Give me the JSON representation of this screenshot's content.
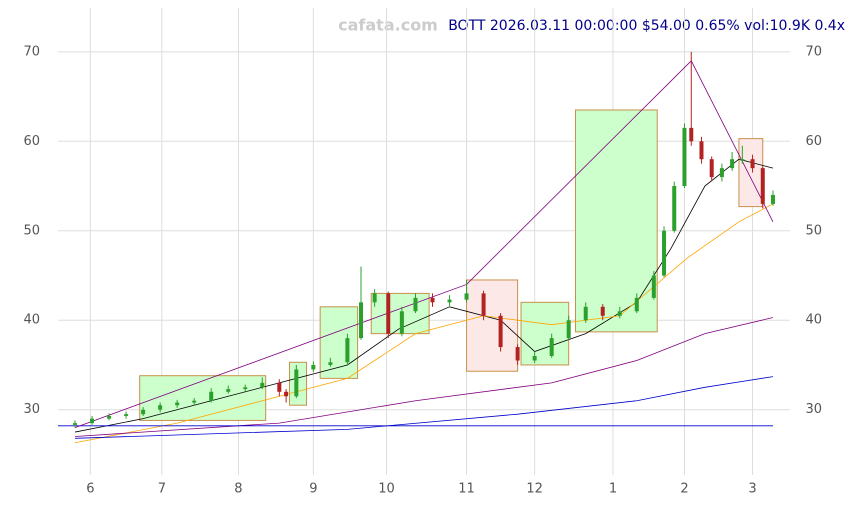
{
  "chart_data": {
    "type": "candlestick",
    "title": "BOTT 2026.03.11 00:00:00 $54.00 0.65% vol:10.9K 0.4x",
    "watermark": "cafata.com",
    "xlim": [
      -5,
      210
    ],
    "ylim": [
      22.7,
      74.9
    ],
    "xticks": [
      {
        "value": 4.5,
        "label": "6"
      },
      {
        "value": 25.5,
        "label": "7"
      },
      {
        "value": 48,
        "label": "8"
      },
      {
        "value": 70,
        "label": "9"
      },
      {
        "value": 91.5,
        "label": "10"
      },
      {
        "value": 115,
        "label": "11"
      },
      {
        "value": 135,
        "label": "12"
      },
      {
        "value": 158,
        "label": "1"
      },
      {
        "value": 179,
        "label": "2"
      },
      {
        "value": 199,
        "label": "3"
      }
    ],
    "yticks": [
      30,
      40,
      50,
      60,
      70
    ],
    "grid": true,
    "up_color": "#2ca02c",
    "down_color": "#b22222",
    "x": [
      0,
      5,
      10,
      15,
      20,
      25,
      30,
      35,
      40,
      45,
      50,
      55,
      60,
      62,
      65,
      70,
      75,
      80,
      84,
      88,
      92,
      96,
      100,
      105,
      110,
      115,
      120,
      125,
      130,
      135,
      140,
      145,
      150,
      155,
      160,
      165,
      170,
      173,
      176,
      179,
      181,
      184,
      187,
      190,
      193,
      196,
      199,
      202,
      205
    ],
    "open": [
      28.3,
      28.5,
      29,
      29.3,
      29.5,
      30,
      30.5,
      30.8,
      31,
      32,
      32.3,
      32.5,
      33,
      32,
      31.5,
      34.5,
      35,
      35.3,
      38,
      42,
      43,
      38.5,
      41,
      42.5,
      42,
      42.3,
      43,
      40.5,
      37,
      35.5,
      36,
      38,
      40,
      41.5,
      40.5,
      41,
      42.5,
      45,
      50,
      55,
      61.5,
      60,
      58,
      56,
      57,
      58,
      58,
      57,
      53
    ],
    "high": [
      28.8,
      29.3,
      29.6,
      29.8,
      30.3,
      30.8,
      31.1,
      31.3,
      32.4,
      32.7,
      32.8,
      33.6,
      33.4,
      32.3,
      35,
      35.4,
      35.8,
      38.5,
      46,
      43.5,
      43.2,
      41.5,
      43,
      43,
      42.8,
      44.5,
      43.3,
      40.8,
      37.3,
      36.5,
      38.5,
      40.5,
      42,
      41.8,
      41.5,
      43,
      45.5,
      50.5,
      55.5,
      62,
      70,
      60.5,
      58.3,
      57.5,
      58.8,
      59.5,
      58.5,
      57.2,
      54.5
    ],
    "low": [
      28.0,
      28.3,
      28.8,
      29.0,
      29.3,
      29.7,
      30.2,
      30.5,
      30.8,
      31.8,
      32,
      32.3,
      31.5,
      30.8,
      31.3,
      34.2,
      34.8,
      35,
      37.8,
      41.5,
      38,
      38.2,
      40.8,
      41.5,
      41.6,
      42,
      40,
      36.5,
      35,
      35.2,
      35.8,
      37.8,
      39.7,
      40,
      40.2,
      40.8,
      42.3,
      44.8,
      49.8,
      54.8,
      59.5,
      57.5,
      55.5,
      55.5,
      56.7,
      57.5,
      56.5,
      52.5,
      52.8
    ],
    "close": [
      28.5,
      29,
      29.3,
      29.5,
      30,
      30.5,
      30.8,
      31,
      32,
      32.3,
      32.5,
      33,
      32,
      31.5,
      34.5,
      35,
      35.3,
      38,
      42,
      43,
      38.5,
      41,
      42.5,
      42,
      42.3,
      43,
      40.5,
      37,
      35.5,
      36,
      38,
      40,
      41.5,
      40.5,
      41,
      42.5,
      45,
      50,
      55,
      61.5,
      60,
      58,
      56,
      57,
      58,
      58,
      57,
      53,
      54
    ],
    "boxes": [
      {
        "x": [
          19,
          56
        ],
        "y": [
          28.8,
          33.8
        ],
        "color": "#ccffcc"
      },
      {
        "x": [
          63,
          68
        ],
        "y": [
          30.5,
          35.3
        ],
        "color": "#ccffcc"
      },
      {
        "x": [
          72,
          83
        ],
        "y": [
          33.5,
          41.5
        ],
        "color": "#ccffcc"
      },
      {
        "x": [
          87,
          104
        ],
        "y": [
          38.5,
          43
        ],
        "color": "#ccffcc"
      },
      {
        "x": [
          115,
          130
        ],
        "y": [
          34.3,
          44.5
        ],
        "color": "#fde8e8"
      },
      {
        "x": [
          131,
          145
        ],
        "y": [
          35,
          42
        ],
        "color": "#ccffcc"
      },
      {
        "x": [
          147,
          171
        ],
        "y": [
          38.7,
          63.5
        ],
        "color": "#ccffcc"
      },
      {
        "x": [
          195,
          202
        ],
        "y": [
          52.7,
          60.3
        ],
        "color": "#fde8e8"
      }
    ],
    "lines": [
      {
        "color": "#000000",
        "x": [
          0,
          20,
          40,
          60,
          80,
          95,
          110,
          125,
          135,
          150,
          165,
          175,
          185,
          195,
          205
        ],
        "values": [
          27.5,
          29,
          31,
          33,
          35,
          39,
          41.5,
          40,
          36.5,
          38.5,
          42,
          48,
          55,
          58,
          57
        ]
      },
      {
        "color": "#ffa500",
        "x": [
          0,
          30,
          60,
          80,
          100,
          120,
          140,
          160,
          180,
          195,
          205
        ],
        "values": [
          26.3,
          28.5,
          31.5,
          33.5,
          38.5,
          40.5,
          39.5,
          40.5,
          47,
          51,
          53
        ]
      },
      {
        "color": "#800080",
        "x": [
          0,
          60,
          100,
          140,
          165,
          185,
          205
        ],
        "values": [
          27,
          28.5,
          31,
          33,
          35.5,
          38.5,
          40.3
        ]
      },
      {
        "color": "#0000cd",
        "x": [
          0,
          80,
          130,
          165,
          185,
          205
        ],
        "values": [
          26.8,
          27.8,
          29.5,
          31,
          32.5,
          33.7
        ]
      },
      {
        "color": "#0000cd",
        "x": [
          -5,
          205
        ],
        "values": [
          28.2,
          28.2
        ]
      },
      {
        "color": "#800080",
        "x": [
          0,
          115,
          181,
          205
        ],
        "values": [
          28,
          44,
          69,
          51
        ]
      }
    ]
  }
}
